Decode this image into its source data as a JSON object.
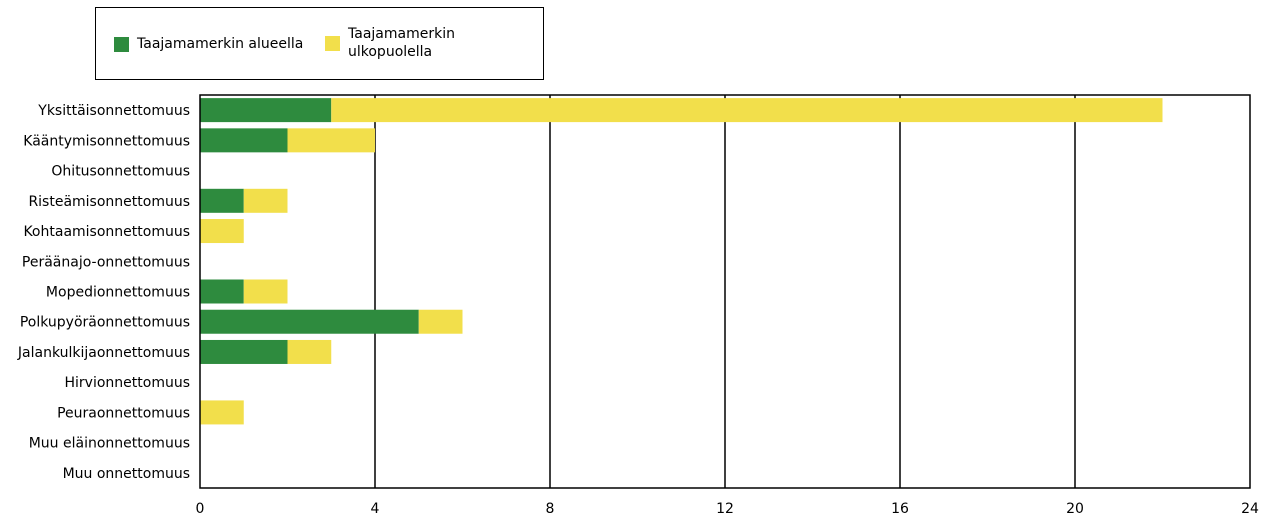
{
  "chart_data": {
    "type": "bar",
    "orientation": "horizontal",
    "stacked": true,
    "categories": [
      "Yksittäisonnettomuus",
      "Kääntymisonnettomuus",
      "Ohitusonnettomuus",
      "Risteämisonnettomuus",
      "Kohtaamisonnettomuus",
      "Peräänajo-onnettomuus",
      "Mopedionnettomuus",
      "Polkupyöräonnettomuus",
      "Jalankulkijaonnettomuus",
      "Hirvionnettomuus",
      "Peuraonnettomuus",
      "Muu eläinonnettomuus",
      "Muu onnettomuus"
    ],
    "series": [
      {
        "name": "Taajamamerkin alueella",
        "color": "#2e8b3e",
        "values": [
          3,
          2,
          0,
          1,
          0,
          0,
          1,
          5,
          2,
          0,
          0,
          0,
          0
        ]
      },
      {
        "name": "Taajamamerkin ulkopuolella",
        "color": "#f2df4b",
        "values": [
          19,
          2,
          0,
          1,
          1,
          0,
          1,
          1,
          1,
          0,
          1,
          0,
          0
        ]
      }
    ],
    "xlim": [
      0,
      24
    ],
    "xticks": [
      0,
      4,
      8,
      12,
      16,
      20,
      24
    ],
    "grid": "vertical",
    "legend_position": "top-left",
    "legend_labels": [
      "Taajamamerkin alueella",
      "Taajamamerkin ulkopuolella"
    ]
  }
}
